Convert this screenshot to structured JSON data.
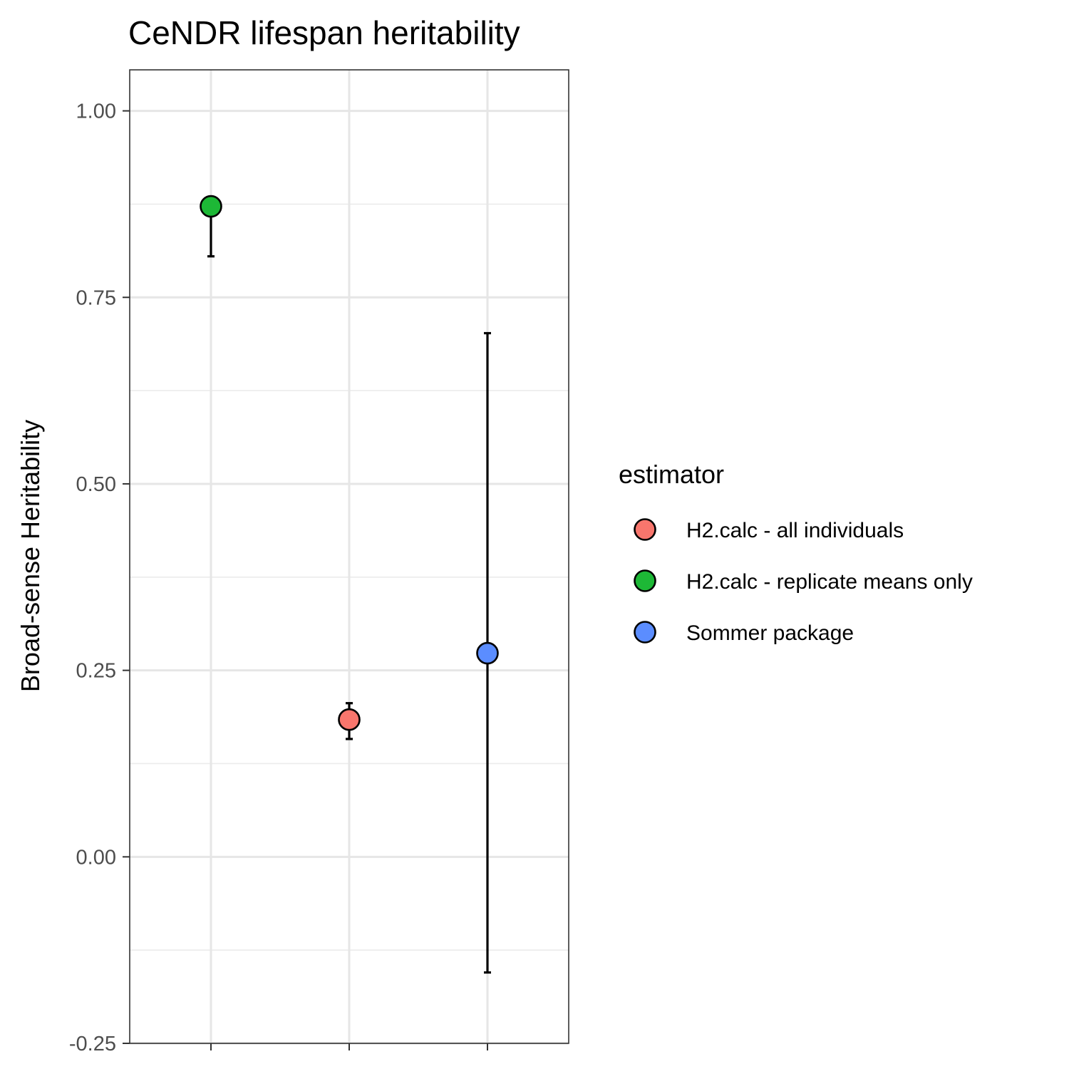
{
  "chart_data": {
    "type": "scatter",
    "title": "CeNDR lifespan heritability",
    "xlabel": "",
    "ylabel": "Broad-sense Heritability",
    "ylim": [
      -0.25,
      1.055
    ],
    "yticks": [
      -0.25,
      0.0,
      0.25,
      0.5,
      0.75,
      1.0
    ],
    "ytick_labels": [
      "-0.25",
      "0.00",
      "0.25",
      "0.50",
      "0.75",
      "1.00"
    ],
    "categories": [
      "H2.calc - all individuals",
      "H2.calc - replicate means only",
      "Sommer package"
    ],
    "grid": true,
    "legend": {
      "title": "estimator",
      "placement": "right"
    },
    "series": [
      {
        "name": "H2.calc - all individuals",
        "color": "#F8766D",
        "x_position": 2,
        "value": 0.184,
        "ci_low": 0.158,
        "ci_high": 0.206
      },
      {
        "name": "H2.calc - replicate means only",
        "color": "#1DB836",
        "x_position": 1,
        "value": 0.872,
        "ci_low": 0.805,
        "ci_high": 0.872
      },
      {
        "name": "Sommer package",
        "color": "#5B8DFF",
        "x_position": 3,
        "value": 0.273,
        "ci_low": -0.155,
        "ci_high": 0.702
      }
    ]
  }
}
